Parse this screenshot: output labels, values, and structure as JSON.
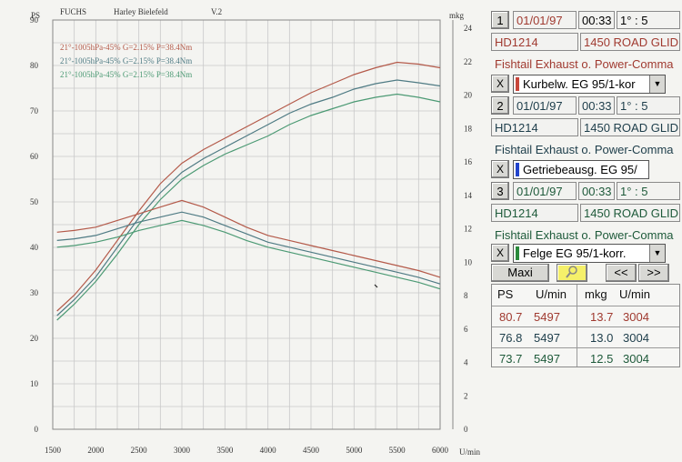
{
  "header": {
    "ps_unit": "PS",
    "brand": "FUCHS",
    "customer": "Harley Bielefeld",
    "version": "V.2",
    "mkg_unit": "mkg",
    "x_unit": "U/min"
  },
  "legend": [
    "21°-1005hPa-45% G=2.15% P=38.4Nm",
    "21°-1005hPa-45% G=2.15% P=38.4Nm",
    "21°-1005hPa-45% G=2.15% P=38.4Nm"
  ],
  "colors": {
    "run1": "#b45a4a",
    "run2": "#4f7b84",
    "run3": "#4c9a74",
    "grid": "#c9c9c9",
    "blue_swatch": "#2244cc"
  },
  "chart_data": {
    "type": "line",
    "xlabel": "U/min",
    "ylabel_left": "PS",
    "ylabel_right": "mkg",
    "x_ticks": [
      1500,
      2000,
      2500,
      3000,
      3500,
      4000,
      4500,
      5000,
      5500,
      6000
    ],
    "y_left_ticks": [
      0,
      10,
      20,
      30,
      40,
      50,
      60,
      70,
      80,
      90
    ],
    "y_right_ticks": [
      0,
      2,
      4,
      6,
      8,
      10,
      12,
      14,
      16,
      18,
      20,
      22,
      24
    ],
    "xlim": [
      1500,
      6000
    ],
    "ylim_left": [
      0,
      90
    ],
    "ylim_right": [
      0,
      24.5
    ],
    "grid": true,
    "x": [
      1550,
      1750,
      2000,
      2250,
      2500,
      2750,
      3000,
      3250,
      3500,
      3750,
      4000,
      4250,
      4500,
      4750,
      5000,
      5250,
      5500,
      5750,
      6000
    ],
    "series": [
      {
        "kind": "power",
        "color": "#b45a4a",
        "values": [
          26,
          29.5,
          35,
          41.5,
          48,
          54,
          58.5,
          61.5,
          64,
          66.5,
          69,
          71.5,
          74,
          76,
          78,
          79.5,
          80.7,
          80.3,
          79.5
        ]
      },
      {
        "kind": "power",
        "color": "#4f7b84",
        "values": [
          25,
          28.5,
          33.5,
          40,
          46.5,
          52,
          56.5,
          59.5,
          62,
          64.5,
          67,
          69.5,
          71.5,
          73,
          74.8,
          76,
          76.8,
          76.2,
          75.5
        ]
      },
      {
        "kind": "power",
        "color": "#4c9a74",
        "values": [
          24,
          27.5,
          32.5,
          38.5,
          45,
          50.5,
          55,
          58,
          60.5,
          62.5,
          64.5,
          67,
          69,
          70.5,
          72,
          73,
          73.7,
          73,
          72
        ]
      },
      {
        "kind": "torque",
        "color": "#b45a4a",
        "values": [
          11.8,
          11.9,
          12.1,
          12.5,
          12.9,
          13.3,
          13.7,
          13.3,
          12.7,
          12.1,
          11.6,
          11.3,
          11.0,
          10.7,
          10.4,
          10.1,
          9.8,
          9.5,
          9.1
        ]
      },
      {
        "kind": "torque",
        "color": "#4f7b84",
        "values": [
          11.3,
          11.4,
          11.6,
          12.0,
          12.4,
          12.7,
          13.0,
          12.7,
          12.2,
          11.7,
          11.2,
          10.9,
          10.6,
          10.3,
          10.0,
          9.7,
          9.4,
          9.1,
          8.7
        ]
      },
      {
        "kind": "torque",
        "color": "#4c9a74",
        "values": [
          10.9,
          11.0,
          11.2,
          11.5,
          11.9,
          12.2,
          12.5,
          12.2,
          11.8,
          11.3,
          10.9,
          10.6,
          10.3,
          10.0,
          9.7,
          9.4,
          9.1,
          8.8,
          8.4
        ]
      }
    ]
  },
  "runs": [
    {
      "number": "1",
      "date": "01/01/97",
      "time": "00:33",
      "ratio": "1° : 5",
      "id": "HD1214",
      "model": "1450 ROAD GLID",
      "note": "Fishtail Exhaust o. Power-Comma",
      "test": "Kurbelw. EG 95/1-kor",
      "color": "#b45a4a",
      "swatch": "#c8463a"
    },
    {
      "number": "2",
      "date": "01/01/97",
      "time": "00:33",
      "ratio": "1° : 5",
      "id": "HD1214",
      "model": "1450 ROAD GLID",
      "note": "Fishtail Exhaust o. Power-Comma",
      "test": "Getriebeausg. EG 95/",
      "color": "#1d3d4a",
      "swatch": "#2244cc"
    },
    {
      "number": "3",
      "date": "01/01/97",
      "time": "00:33",
      "ratio": "1° : 5",
      "id": "HD1214",
      "model": "1450 ROAD GLID",
      "note": "Fishtail Exhaust o. Power-Comma",
      "test": "Felge EG 95/1-korr.",
      "color": "#1e5a3a",
      "swatch": "#2a8a3a"
    }
  ],
  "controls": {
    "maxi": "Maxi",
    "prev": "<<",
    "next": ">>",
    "close": "X",
    "dropdown": "▼"
  },
  "results": {
    "headers": [
      "PS",
      "U/min",
      "mkg",
      "U/min"
    ],
    "rows": [
      {
        "ps": "80.7",
        "rpm1": "5497",
        "mkg": "13.7",
        "rpm2": "3004",
        "color": "#a03a30"
      },
      {
        "ps": "76.8",
        "rpm1": "5497",
        "mkg": "13.0",
        "rpm2": "3004",
        "color": "#1d3d4a"
      },
      {
        "ps": "73.7",
        "rpm1": "5497",
        "mkg": "12.5",
        "rpm2": "3004",
        "color": "#1e5a3a"
      }
    ]
  }
}
